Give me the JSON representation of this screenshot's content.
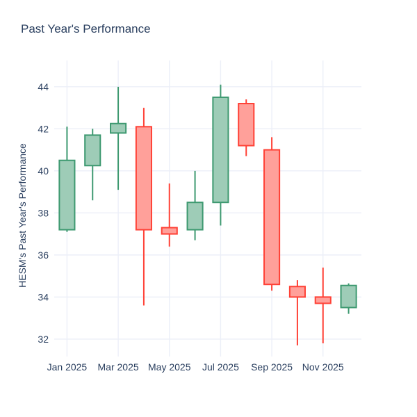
{
  "page": {
    "background": "#ffffff"
  },
  "chart_data": {
    "type": "candlestick",
    "title": "Past Year's Performance",
    "ylabel": "HESM's Past Year's Performance",
    "xlabel": "",
    "grid": true,
    "legend": false,
    "ylim": [
      31.17,
      45.25
    ],
    "y_ticks": [
      32,
      34,
      36,
      38,
      40,
      42,
      44
    ],
    "x_ticks": [
      {
        "index": 0,
        "label": "Jan 2025"
      },
      {
        "index": 2,
        "label": "Mar 2025"
      },
      {
        "index": 4,
        "label": "May 2025"
      },
      {
        "index": 6,
        "label": "Jul 2025"
      },
      {
        "index": 8,
        "label": "Sep 2025"
      },
      {
        "index": 10,
        "label": "Nov 2025"
      }
    ],
    "candles": [
      {
        "open": 37.2,
        "high": 42.1,
        "low": 37.1,
        "close": 40.5
      },
      {
        "open": 40.25,
        "high": 42.0,
        "low": 38.6,
        "close": 41.7
      },
      {
        "open": 41.8,
        "high": 44.0,
        "low": 39.1,
        "close": 42.25
      },
      {
        "open": 42.1,
        "high": 43.0,
        "low": 33.6,
        "close": 37.2
      },
      {
        "open": 37.3,
        "high": 39.4,
        "low": 36.4,
        "close": 37.0
      },
      {
        "open": 37.2,
        "high": 40.0,
        "low": 36.7,
        "close": 38.5
      },
      {
        "open": 38.5,
        "high": 44.1,
        "low": 37.4,
        "close": 43.5
      },
      {
        "open": 43.2,
        "high": 43.4,
        "low": 40.7,
        "close": 41.2
      },
      {
        "open": 41.0,
        "high": 41.6,
        "low": 34.3,
        "close": 34.6
      },
      {
        "open": 34.5,
        "high": 34.8,
        "low": 31.7,
        "close": 34.0
      },
      {
        "open": 34.0,
        "high": 35.4,
        "low": 31.8,
        "close": 33.7
      },
      {
        "open": 33.5,
        "high": 34.65,
        "low": 33.2,
        "close": 34.55
      }
    ],
    "colors": {
      "increasing_line": "#3D9970",
      "increasing_fill": "#9ECCB7",
      "decreasing_line": "#FF4136",
      "decreasing_fill": "#FFA09A",
      "grid": "#ECEFF8",
      "text": "#2A3F5F"
    }
  }
}
